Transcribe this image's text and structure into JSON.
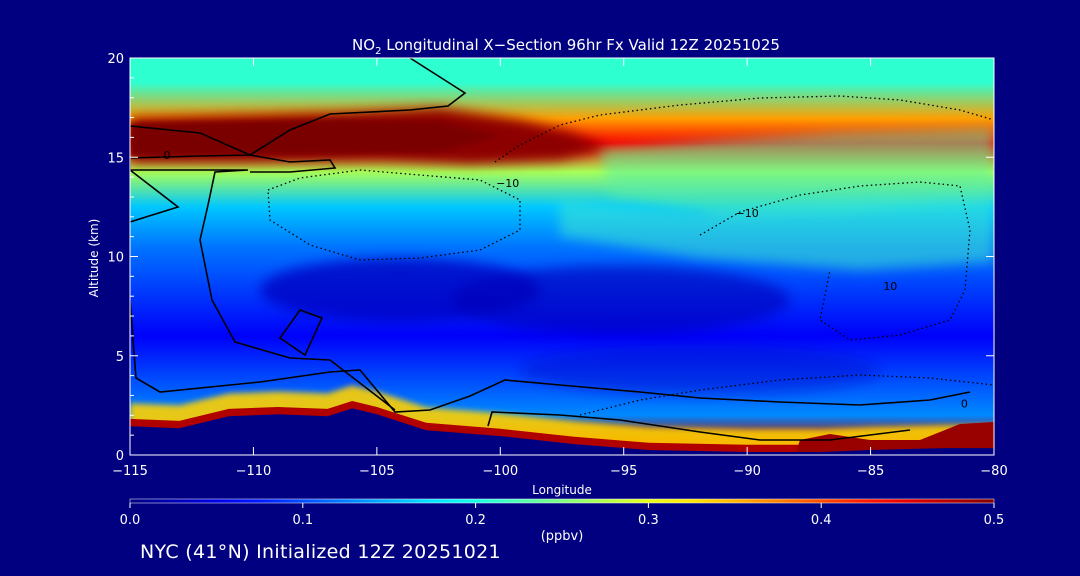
{
  "chart_data": {
    "type": "heatmap",
    "title_main": "NO",
    "title_sub": "2",
    "title_rest": " Longitudinal X−Section 96hr  Fx Valid 12Z 20251025",
    "xlabel": "Longitude",
    "ylabel": "Altitude (km)",
    "xlim": [
      -115,
      -80
    ],
    "ylim": [
      0,
      20
    ],
    "x_ticks": [
      -115,
      -110,
      -105,
      -100,
      -95,
      -90,
      -85,
      -80
    ],
    "x_tick_labels": [
      "−115",
      "−110",
      "−105",
      "−100",
      "−95",
      "−90",
      "−85",
      "−80"
    ],
    "y_ticks": [
      0,
      5,
      10,
      15,
      20
    ],
    "y_tick_labels": [
      "0",
      "5",
      "10",
      "15",
      "20"
    ],
    "colorbar": {
      "min": 0.0,
      "max": 0.5,
      "ticks": [
        0.0,
        0.1,
        0.2,
        0.3,
        0.4,
        0.5
      ],
      "tick_labels": [
        "0.0",
        "0.1",
        "0.2",
        "0.3",
        "0.4",
        "0.5"
      ],
      "unit_label": "(ppbv)",
      "colormap": "jet"
    },
    "bands": [
      {
        "z_min": 17.5,
        "z_max": 20.0,
        "value": 0.21
      },
      {
        "z_min": 16.4,
        "z_max": 17.5,
        "value": 0.36
      },
      {
        "z_min": 15.0,
        "z_max": 16.4,
        "value": 0.44
      },
      {
        "z_min": 13.5,
        "z_max": 15.0,
        "value": 0.27
      },
      {
        "z_min": 11.5,
        "z_max": 13.5,
        "value": 0.16
      },
      {
        "z_min": 9.5,
        "z_max": 11.5,
        "value": 0.12
      },
      {
        "z_min": 2.5,
        "z_max": 9.5,
        "value": 0.06
      },
      {
        "z_min": 1.5,
        "z_max": 2.5,
        "value": 0.13
      },
      {
        "z_min": 0.0,
        "z_max": 1.5,
        "value": 0.48
      }
    ],
    "features": {
      "stratospheric_max": {
        "lon_range": [
          -115,
          -97
        ],
        "alt_range": [
          15,
          17.5
        ],
        "value": 0.5
      },
      "surface_terrain_km": [
        [
          -115,
          1.7
        ],
        [
          -113,
          1.6
        ],
        [
          -111,
          2.2
        ],
        [
          -109,
          2.3
        ],
        [
          -107,
          2.2
        ],
        [
          -106,
          2.6
        ],
        [
          -105,
          2.3
        ],
        [
          -103,
          1.5
        ],
        [
          -100,
          1.2
        ],
        [
          -97,
          0.8
        ],
        [
          -94,
          0.5
        ],
        [
          -90,
          0.4
        ],
        [
          -87,
          0.4
        ],
        [
          -85,
          0.5
        ],
        [
          -82,
          0.6
        ],
        [
          -80,
          0.6
        ]
      ],
      "contour_labels": [
        {
          "text": "−10",
          "lon": -99.7,
          "alt": 13.5
        },
        {
          "text": "−10",
          "lon": -90.0,
          "alt": 12.0
        },
        {
          "text": "10",
          "lon": -84.2,
          "alt": 8.3
        },
        {
          "text": "0",
          "lon": -113.5,
          "alt": 14.9
        },
        {
          "text": "0",
          "lon": -81.2,
          "alt": 2.4
        }
      ]
    }
  },
  "footer": {
    "init_text": "NYC (41°N) Initialized 12Z 20251021"
  },
  "colors": {
    "background": "#000080",
    "text": "#ffffff",
    "contour": "#000000"
  }
}
